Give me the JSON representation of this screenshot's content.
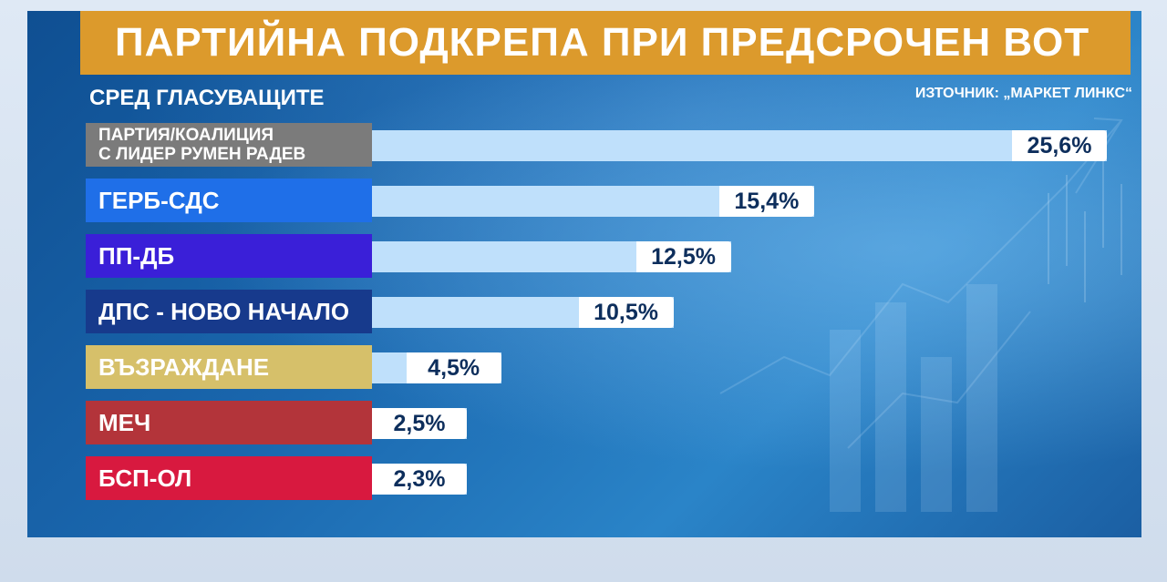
{
  "header": {
    "title": "ПАРТИЙНА ПОДКРЕПА ПРИ ПРЕДСРОЧЕН ВОТ",
    "subtitle": "СРЕД ГЛАСУВАЩИТЕ",
    "source": "ИЗТОЧНИК: „МАРКЕТ ЛИНКС“"
  },
  "chart_data": {
    "type": "bar",
    "orientation": "horizontal",
    "title": "ПАРТИЙНА ПОДКРЕПА ПРИ ПРЕДСРОЧЕН ВОТ",
    "subtitle": "СРЕД ГЛАСУВАЩИТЕ",
    "unit": "%",
    "categories": [
      "ПАРТИЯ/КОАЛИЦИЯ С ЛИДЕР РУМЕН РАДЕВ",
      "ГЕРБ-СДС",
      "ПП-ДБ",
      "ДПС - НОВО НАЧАЛО",
      "ВЪЗРАЖДАНЕ",
      "МЕЧ",
      "БСП-ОЛ"
    ],
    "category_lines": [
      [
        "ПАРТИЯ/КОАЛИЦИЯ",
        "С ЛИДЕР РУМЕН РАДЕВ"
      ],
      [
        "ГЕРБ-СДС"
      ],
      [
        "ПП-ДБ"
      ],
      [
        "ДПС - НОВО НАЧАЛО"
      ],
      [
        "ВЪЗРАЖДАНЕ"
      ],
      [
        "МЕЧ"
      ],
      [
        "БСП-ОЛ"
      ]
    ],
    "values": [
      25.6,
      15.4,
      12.5,
      10.5,
      4.5,
      2.5,
      2.3
    ],
    "value_labels": [
      "25,6%",
      "15,4%",
      "12,5%",
      "10,5%",
      "4,5%",
      "2,5%",
      "2,3%"
    ],
    "category_colors": [
      "#7b7b7b",
      "#1f6fe8",
      "#3a1fd8",
      "#173a8c",
      "#d6c06a",
      "#b3343a",
      "#d8193f"
    ],
    "bar_color": "#bfe0fb",
    "value_label_bg": "#ffffff",
    "value_label_color": "#0d2e5c"
  },
  "colors": {
    "title_bar": "#dc9a2c",
    "background": "#1a67ae"
  }
}
